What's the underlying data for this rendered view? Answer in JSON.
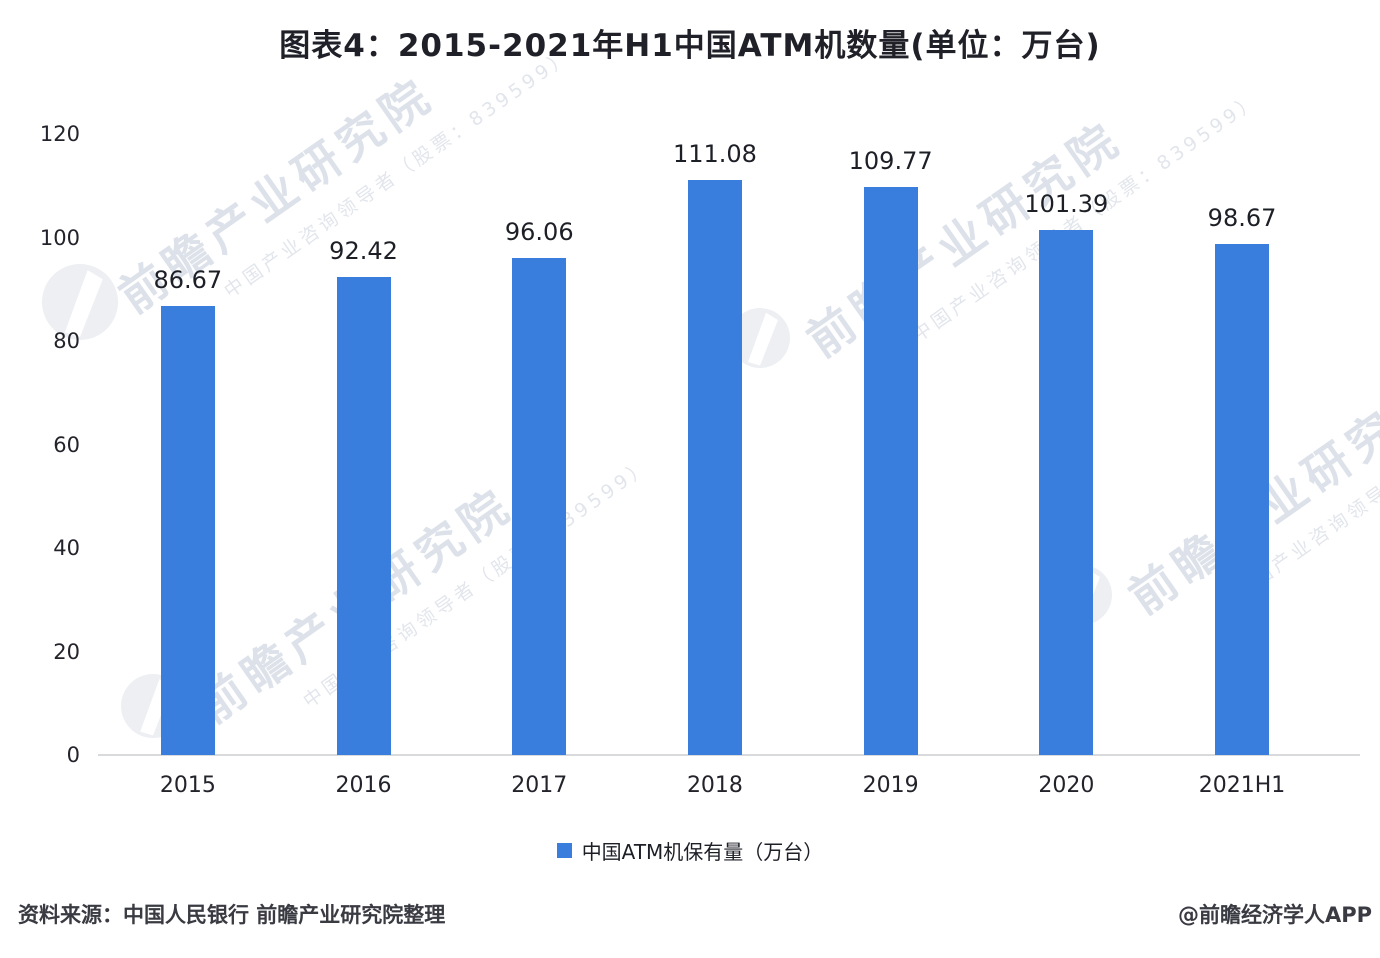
{
  "title": "图表4：2015-2021年H1中国ATM机数量(单位：万台)",
  "chart_data": {
    "type": "bar",
    "title": "图表4：2015-2021年H1中国ATM机数量(单位：万台)",
    "categories": [
      "2015",
      "2016",
      "2017",
      "2018",
      "2019",
      "2020",
      "2021H1"
    ],
    "values": [
      86.67,
      92.42,
      96.06,
      111.08,
      109.77,
      101.39,
      98.67
    ],
    "series_name": "中国ATM机保有量（万台）",
    "xlabel": "",
    "ylabel": "",
    "ylim": [
      0,
      120
    ],
    "yticks": [
      0,
      20,
      40,
      60,
      80,
      100,
      120
    ],
    "grid": false,
    "legend_position": "bottom",
    "bar_color": "#3a7edd",
    "value_labels_shown": true
  },
  "legend": {
    "label": "中国ATM机保有量（万台）",
    "marker_color": "#3a7edd"
  },
  "footer": {
    "source": "资料来源：中国人民银行 前瞻产业研究院整理",
    "credit": "@前瞻经济学人APP"
  },
  "watermark": {
    "main": "前瞻产业研究院",
    "sub": "中国产业咨询领导者（股票：839599）"
  },
  "colors": {
    "bar": "#3a7edd",
    "axis_line": "#d9dadc",
    "text": "#23242b",
    "watermark": "#aebacc"
  }
}
